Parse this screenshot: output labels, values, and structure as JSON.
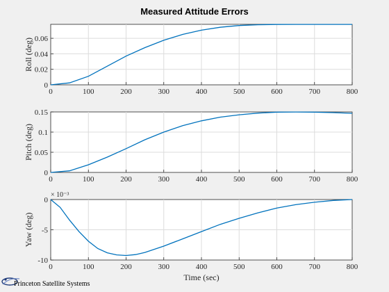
{
  "chart_data": {
    "type": "line",
    "title": "Measured Attitude Errors",
    "xlabel": "Time (sec)",
    "xlim": [
      0,
      800
    ],
    "xticks": [
      0,
      100,
      200,
      300,
      400,
      500,
      600,
      700,
      800
    ],
    "grid": true,
    "panels": [
      {
        "ylabel": "Roll  (deg)",
        "ylim": [
          0,
          0.078
        ],
        "yticks": [
          0,
          0.02,
          0.04,
          0.06
        ],
        "ytick_labels": [
          "0",
          "0.02",
          "0.04",
          "0.06"
        ],
        "exponent_label": "",
        "series": [
          {
            "x": [
              0,
              50,
              100,
              150,
              200,
              250,
              300,
              350,
              400,
              450,
              500,
              550,
              600,
              650,
              700,
              750,
              800
            ],
            "y": [
              0,
              0.0025,
              0.011,
              0.024,
              0.037,
              0.048,
              0.0575,
              0.065,
              0.0705,
              0.0742,
              0.0765,
              0.0775,
              0.0778,
              0.0779,
              0.0779,
              0.0779,
              0.0779
            ]
          }
        ]
      },
      {
        "ylabel": "Pitch (deg)",
        "ylim": [
          0,
          0.15
        ],
        "yticks": [
          0,
          0.05,
          0.1,
          0.15
        ],
        "ytick_labels": [
          "0",
          "0.05",
          "0.1",
          "0.15"
        ],
        "exponent_label": "",
        "series": [
          {
            "x": [
              0,
              50,
              100,
              150,
              200,
              250,
              300,
              350,
              400,
              450,
              500,
              550,
              600,
              650,
              700,
              750,
              800
            ],
            "y": [
              0,
              0.004,
              0.019,
              0.038,
              0.059,
              0.081,
              0.1,
              0.116,
              0.128,
              0.137,
              0.143,
              0.147,
              0.1495,
              0.1498,
              0.1495,
              0.1482,
              0.1465
            ]
          }
        ]
      },
      {
        "ylabel": "Yaw    (deg)",
        "ylim": [
          -10,
          0
        ],
        "yticks": [
          -10,
          -5,
          0
        ],
        "ytick_labels": [
          "-10",
          "-5",
          "0"
        ],
        "exponent_label": "× 10⁻³",
        "series": [
          {
            "x": [
              0,
              25,
              50,
              75,
              100,
              125,
              150,
              175,
              200,
              225,
              250,
              300,
              350,
              400,
              450,
              500,
              550,
              600,
              650,
              700,
              750,
              800
            ],
            "y": [
              0,
              -1.3,
              -3.4,
              -5.3,
              -6.9,
              -8.1,
              -8.8,
              -9.15,
              -9.25,
              -9.1,
              -8.75,
              -7.7,
              -6.5,
              -5.3,
              -4.1,
              -3.1,
              -2.2,
              -1.4,
              -0.85,
              -0.45,
              -0.15,
              0
            ]
          }
        ]
      }
    ]
  },
  "logo": {
    "text": "Princeton Satellite Systems"
  },
  "colors": {
    "line": "#0072bd",
    "background": "#f0f0f0",
    "axes": "#ffffff",
    "grid": "#dcdcdc"
  }
}
